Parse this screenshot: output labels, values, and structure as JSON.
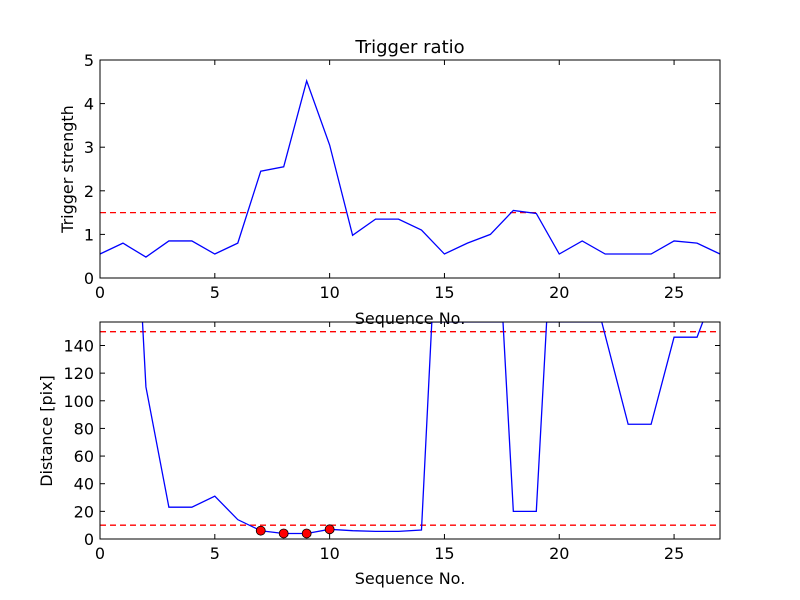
{
  "chart_data": [
    {
      "type": "line",
      "title": "Trigger ratio",
      "xlabel": "Sequence No.",
      "ylabel": "Trigger strength",
      "xlim": [
        0,
        27
      ],
      "ylim": [
        0,
        5
      ],
      "xticks": [
        0,
        5,
        10,
        15,
        20,
        25
      ],
      "yticks": [
        0,
        1,
        2,
        3,
        4,
        5
      ],
      "series": [
        {
          "color": "#0000ff",
          "x": [
            0,
            1,
            2,
            3,
            4,
            5,
            6,
            7,
            8,
            9,
            10,
            11,
            12,
            13,
            14,
            15,
            16,
            17,
            18,
            19,
            20,
            21,
            22,
            23,
            24,
            25,
            26,
            27
          ],
          "values": [
            0.55,
            0.8,
            0.48,
            0.85,
            0.85,
            0.55,
            0.8,
            2.45,
            2.55,
            4.52,
            3.05,
            0.98,
            1.35,
            1.35,
            1.1,
            0.55,
            0.8,
            1.0,
            1.55,
            1.48,
            0.55,
            0.85,
            0.55,
            0.55,
            0.55,
            0.85,
            0.8,
            0.55
          ]
        }
      ],
      "thresholds": [
        {
          "y": 1.5,
          "color": "#ff0000",
          "style": "dashed"
        }
      ]
    },
    {
      "type": "line",
      "xlabel": "Sequence No.",
      "ylabel": "Distance [pix]",
      "xlim": [
        0,
        27
      ],
      "ylim": [
        0,
        157
      ],
      "xticks": [
        0,
        5,
        10,
        15,
        20,
        25
      ],
      "yticks": [
        0,
        20,
        40,
        60,
        80,
        100,
        120,
        140
      ],
      "series": [
        {
          "color": "#0000ff",
          "x": [
            1.85,
            2,
            3,
            4,
            5,
            6,
            7,
            8,
            9,
            10,
            11,
            12,
            13,
            14,
            14.45,
            17.55,
            18,
            19,
            19.45,
            21.85,
            23,
            24,
            25,
            26,
            26.25
          ],
          "values": [
            157,
            110,
            23,
            23,
            31,
            14,
            6,
            4,
            4,
            7,
            6,
            5.5,
            5.5,
            6.5,
            157,
            157,
            20,
            20,
            157,
            157,
            83,
            83,
            146,
            146,
            157
          ]
        }
      ],
      "markers": {
        "color": "#ff0000",
        "x": [
          7,
          8,
          9,
          10
        ],
        "values": [
          6,
          4,
          4,
          7
        ]
      },
      "thresholds": [
        {
          "y": 150,
          "color": "#ff0000",
          "style": "dashed"
        },
        {
          "y": 10,
          "color": "#ff0000",
          "style": "dashed"
        }
      ]
    }
  ]
}
